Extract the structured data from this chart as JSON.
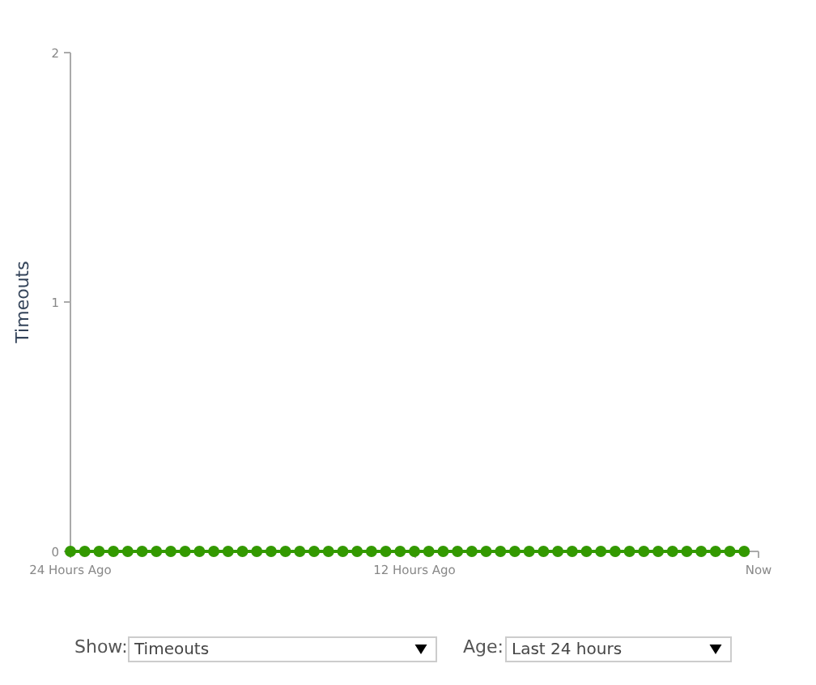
{
  "chart_data": {
    "type": "line",
    "ylabel": "Timeouts",
    "x": [
      -24,
      -23.5,
      -23,
      -22.5,
      -22,
      -21.5,
      -21,
      -20.5,
      -20,
      -19.5,
      -19,
      -18.5,
      -18,
      -17.5,
      -17,
      -16.5,
      -16,
      -15.5,
      -15,
      -14.5,
      -14,
      -13.5,
      -13,
      -12.5,
      -12,
      -11.5,
      -11,
      -10.5,
      -10,
      -9.5,
      -9,
      -8.5,
      -8,
      -7.5,
      -7,
      -6.5,
      -6,
      -5.5,
      -5,
      -4.5,
      -4,
      -3.5,
      -3,
      -2.5,
      -2,
      -1.5,
      -1,
      -0.5
    ],
    "series": [
      {
        "color": "#339900",
        "values": [
          0,
          0,
          0,
          0,
          0,
          0,
          0,
          0,
          0,
          0,
          0,
          0,
          0,
          0,
          0,
          0,
          0,
          0,
          0,
          0,
          0,
          0,
          0,
          0,
          0,
          0,
          0,
          0,
          0,
          0,
          0,
          0,
          0,
          0,
          0,
          0,
          0,
          0,
          0,
          0,
          0,
          0,
          0,
          0,
          0,
          0,
          0,
          0
        ]
      }
    ],
    "xlim": [
      -24,
      0
    ],
    "ylim": [
      0,
      2
    ],
    "xticks": [
      {
        "value": -24,
        "label": "24 Hours Ago"
      },
      {
        "value": -12,
        "label": "12 Hours Ago"
      },
      {
        "value": 0,
        "label": "Now"
      }
    ],
    "yticks": [
      0,
      1,
      2
    ],
    "grid": false,
    "marker": "circle",
    "line_style": "solid",
    "annotations": [
      "Show:",
      "Timeouts",
      "Age:",
      "Last 24 hours"
    ]
  }
}
